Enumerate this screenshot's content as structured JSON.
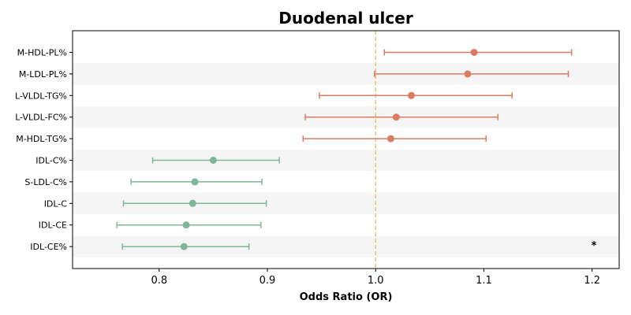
{
  "chart_data": {
    "type": "forest",
    "title": "Duodenal ulcer",
    "xlabel": "Odds Ratio (OR)",
    "ylabel": "",
    "xlim": [
      0.72,
      1.225
    ],
    "xticks": [
      0.8,
      0.9,
      1.0,
      1.1,
      1.2
    ],
    "xtick_labels": [
      "0.8",
      "0.9",
      "1.0",
      "1.1",
      "1.2"
    ],
    "reference_line": 1.0,
    "grid": false,
    "row_banding": true,
    "colors": {
      "positive": "#DB7B62",
      "negative": "#7FB69A",
      "reference": "#F2BE7A",
      "band": "#F5F5F5"
    },
    "rows": [
      {
        "label": "M-HDL-PL%",
        "or": 1.091,
        "lower": 1.008,
        "upper": 1.181,
        "group": "positive"
      },
      {
        "label": "M-LDL-PL%",
        "or": 1.085,
        "lower": 0.999,
        "upper": 1.178,
        "group": "positive"
      },
      {
        "label": "L-VLDL-TG%",
        "or": 1.033,
        "lower": 0.948,
        "upper": 1.126,
        "group": "positive"
      },
      {
        "label": "L-VLDL-FC%",
        "or": 1.019,
        "lower": 0.935,
        "upper": 1.113,
        "group": "positive"
      },
      {
        "label": "M-HDL-TG%",
        "or": 1.014,
        "lower": 0.933,
        "upper": 1.102,
        "group": "positive"
      },
      {
        "label": "IDL-C%",
        "or": 0.85,
        "lower": 0.794,
        "upper": 0.911,
        "group": "negative"
      },
      {
        "label": "S-LDL-C%",
        "or": 0.833,
        "lower": 0.774,
        "upper": 0.895,
        "group": "negative"
      },
      {
        "label": "IDL-C",
        "or": 0.831,
        "lower": 0.767,
        "upper": 0.899,
        "group": "negative"
      },
      {
        "label": "IDL-CE",
        "or": 0.825,
        "lower": 0.761,
        "upper": 0.894,
        "group": "negative"
      },
      {
        "label": "IDL-CE%",
        "or": 0.823,
        "lower": 0.766,
        "upper": 0.883,
        "group": "negative"
      }
    ],
    "annotations": [
      {
        "row": "IDL-CE%",
        "text": "*"
      }
    ]
  }
}
